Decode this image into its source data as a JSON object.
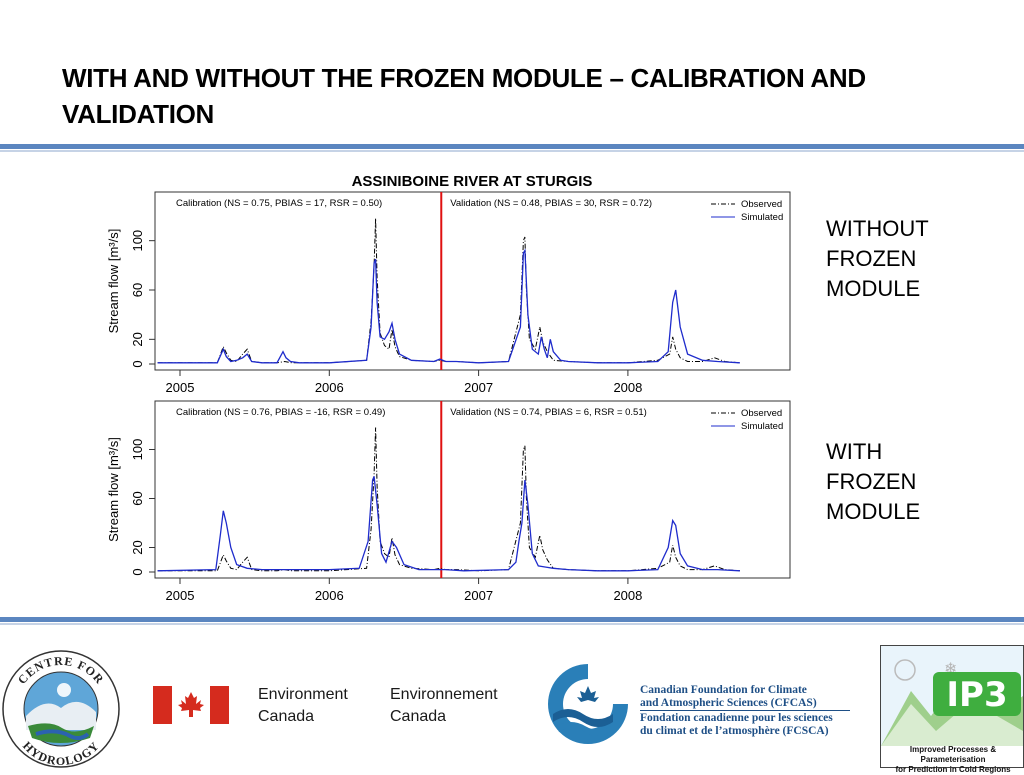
{
  "slide": {
    "title": "WITH AND WITHOUT THE FROZEN MODULE – CALIBRATION AND VALIDATION",
    "label_without": "WITHOUT\nFROZEN\nMODULE",
    "label_with": "WITH\nFROZEN\nMODULE"
  },
  "colors": {
    "accent_rule": "#5b86c0",
    "simulated": "#1f2ccc",
    "observed": "#000000",
    "split_line": "#e01010"
  },
  "chart_data": [
    {
      "type": "line",
      "title": "ASSINIBOINE RIVER AT STURGIS",
      "ylabel": "Stream flow [m³/s]",
      "xlabel": "",
      "x_ticks": [
        "2005",
        "2006",
        "2007",
        "2008"
      ],
      "y_ticks": [
        0,
        20,
        60,
        100
      ],
      "ylim": [
        0,
        120
      ],
      "xlim": [
        2004.85,
        2008.75
      ],
      "split_x": 2006.75,
      "annotation_left": "Calibration (NS = 0.75, PBIAS = 17, RSR = 0.50)",
      "annotation_right": "Validation (NS = 0.48, PBIAS = 30, RSR = 0.72)",
      "legend": {
        "position": "top-right",
        "entries": [
          "Observed",
          "Simulated"
        ]
      },
      "series": [
        {
          "name": "Observed",
          "style": "dashdot",
          "x": [
            2004.85,
            2005.25,
            2005.29,
            2005.31,
            2005.34,
            2005.38,
            2005.42,
            2005.45,
            2005.48,
            2005.55,
            2005.65,
            2005.7,
            2005.75,
            2006.0,
            2006.25,
            2006.28,
            2006.3,
            2006.31,
            2006.32,
            2006.34,
            2006.37,
            2006.4,
            2006.42,
            2006.44,
            2006.47,
            2006.55,
            2006.7,
            2006.74,
            2006.78,
            2006.85,
            2007.0,
            2007.2,
            2007.28,
            2007.3,
            2007.31,
            2007.32,
            2007.34,
            2007.38,
            2007.41,
            2007.43,
            2007.46,
            2007.5,
            2007.6,
            2007.8,
            2008.0,
            2008.2,
            2008.28,
            2008.3,
            2008.32,
            2008.35,
            2008.4,
            2008.5,
            2008.58,
            2008.65,
            2008.75
          ],
          "y": [
            1,
            1,
            14,
            9,
            3,
            2,
            8,
            12,
            2,
            1,
            1,
            2,
            1,
            1,
            3,
            35,
            80,
            118,
            70,
            25,
            15,
            12,
            28,
            14,
            6,
            3,
            2,
            3,
            2,
            2,
            1,
            2,
            40,
            100,
            103,
            60,
            20,
            12,
            30,
            18,
            10,
            3,
            2,
            1,
            1,
            3,
            8,
            22,
            12,
            5,
            2,
            2,
            5,
            2,
            1
          ]
        },
        {
          "name": "Simulated",
          "style": "solid",
          "x": [
            2004.85,
            2005.25,
            2005.29,
            2005.31,
            2005.34,
            2005.38,
            2005.42,
            2005.45,
            2005.48,
            2005.55,
            2005.65,
            2005.69,
            2005.71,
            2005.74,
            2005.8,
            2006.0,
            2006.25,
            2006.28,
            2006.3,
            2006.31,
            2006.32,
            2006.34,
            2006.37,
            2006.4,
            2006.42,
            2006.44,
            2006.47,
            2006.55,
            2006.7,
            2006.74,
            2006.78,
            2006.85,
            2007.0,
            2007.2,
            2007.28,
            2007.3,
            2007.31,
            2007.33,
            2007.36,
            2007.4,
            2007.42,
            2007.44,
            2007.46,
            2007.48,
            2007.5,
            2007.55,
            2007.6,
            2007.8,
            2008.0,
            2008.2,
            2008.27,
            2008.3,
            2008.32,
            2008.35,
            2008.4,
            2008.5,
            2008.6,
            2008.75
          ],
          "y": [
            1,
            1,
            12,
            6,
            2,
            3,
            5,
            8,
            2,
            1,
            1,
            10,
            5,
            2,
            1,
            1,
            3,
            30,
            82,
            85,
            50,
            22,
            20,
            26,
            33,
            20,
            8,
            3,
            2,
            4,
            2,
            2,
            1,
            2,
            30,
            90,
            92,
            40,
            12,
            8,
            22,
            12,
            5,
            20,
            10,
            3,
            2,
            1,
            1,
            2,
            10,
            50,
            60,
            30,
            8,
            3,
            2,
            1
          ]
        }
      ]
    },
    {
      "type": "line",
      "title": "",
      "ylabel": "Stream flow [m³/s]",
      "xlabel": "",
      "x_ticks": [
        "2005",
        "2006",
        "2007",
        "2008"
      ],
      "y_ticks": [
        0,
        20,
        60,
        100
      ],
      "ylim": [
        0,
        120
      ],
      "xlim": [
        2004.85,
        2008.75
      ],
      "split_x": 2006.75,
      "annotation_left": "Calibration (NS = 0.76, PBIAS = -16, RSR = 0.49)",
      "annotation_right": "Validation (NS = 0.74, PBIAS = 6, RSR = 0.51)",
      "legend": {
        "position": "top-right",
        "entries": [
          "Observed",
          "Simulated"
        ]
      },
      "series": [
        {
          "name": "Observed",
          "style": "dashdot",
          "x": [
            2004.85,
            2005.25,
            2005.29,
            2005.31,
            2005.34,
            2005.38,
            2005.42,
            2005.45,
            2005.48,
            2005.55,
            2005.65,
            2005.7,
            2005.75,
            2006.0,
            2006.25,
            2006.28,
            2006.3,
            2006.31,
            2006.32,
            2006.34,
            2006.37,
            2006.4,
            2006.42,
            2006.44,
            2006.47,
            2006.55,
            2006.7,
            2006.74,
            2006.78,
            2006.85,
            2007.0,
            2007.2,
            2007.28,
            2007.3,
            2007.31,
            2007.32,
            2007.34,
            2007.38,
            2007.41,
            2007.43,
            2007.46,
            2007.5,
            2007.6,
            2007.8,
            2008.0,
            2008.2,
            2008.28,
            2008.3,
            2008.32,
            2008.35,
            2008.4,
            2008.5,
            2008.58,
            2008.65,
            2008.75
          ],
          "y": [
            1,
            1,
            14,
            9,
            3,
            2,
            8,
            12,
            2,
            1,
            1,
            2,
            1,
            1,
            3,
            35,
            80,
            118,
            70,
            25,
            15,
            12,
            28,
            14,
            6,
            3,
            2,
            3,
            2,
            2,
            1,
            2,
            40,
            100,
            103,
            60,
            20,
            12,
            30,
            18,
            10,
            3,
            2,
            1,
            1,
            3,
            8,
            22,
            12,
            5,
            2,
            2,
            5,
            2,
            1
          ]
        },
        {
          "name": "Simulated",
          "style": "solid",
          "x": [
            2004.85,
            2005.24,
            2005.27,
            2005.29,
            2005.31,
            2005.34,
            2005.38,
            2005.45,
            2005.55,
            2005.7,
            2005.9,
            2006.0,
            2006.2,
            2006.26,
            2006.29,
            2006.3,
            2006.32,
            2006.35,
            2006.38,
            2006.42,
            2006.45,
            2006.5,
            2006.6,
            2006.74,
            2006.78,
            2006.9,
            2007.2,
            2007.25,
            2007.27,
            2007.29,
            2007.31,
            2007.33,
            2007.36,
            2007.4,
            2007.45,
            2007.5,
            2007.6,
            2007.8,
            2008.0,
            2008.2,
            2008.27,
            2008.3,
            2008.32,
            2008.35,
            2008.4,
            2008.5,
            2008.6,
            2008.75
          ],
          "y": [
            1,
            2,
            30,
            50,
            40,
            20,
            6,
            3,
            2,
            2,
            2,
            2,
            3,
            25,
            75,
            78,
            55,
            15,
            8,
            25,
            20,
            6,
            2,
            2,
            2,
            1,
            2,
            8,
            25,
            40,
            75,
            55,
            15,
            5,
            4,
            3,
            2,
            1,
            1,
            2,
            20,
            42,
            38,
            15,
            5,
            2,
            2,
            1
          ]
        }
      ]
    }
  ],
  "logos": {
    "hydrology": {
      "top_text": "CENTRE FOR",
      "bottom_text": "HYDROLOGY"
    },
    "environment_canada": {
      "en": "Environment\nCanada",
      "fr": "Environnement\nCanada"
    },
    "cfcas": {
      "en": "Canadian Foundation for Climate\nand Atmospheric Sciences (CFCAS)",
      "fr": "Fondation canadienne pour les sciences\ndu climat et de l’atmosphère (FCSCA)"
    },
    "ip3": {
      "mark": "IP3",
      "caption": "Improved Processes & Parameterisation\nfor Prediction in Cold Regions"
    }
  }
}
